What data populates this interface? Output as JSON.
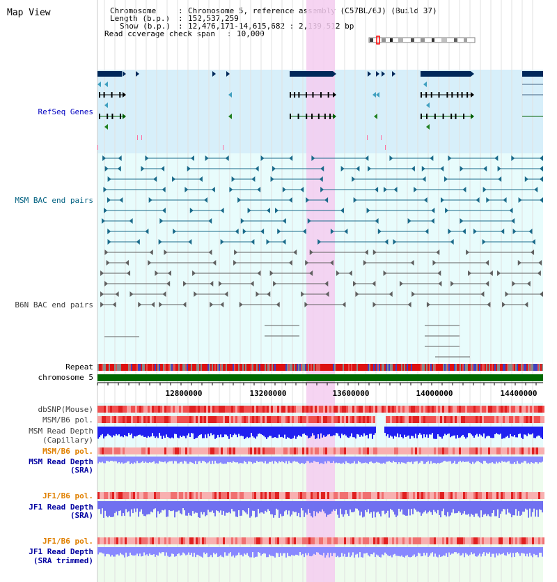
{
  "title": "Map View",
  "info": {
    "chromosome_key": "Chromosome",
    "chromosome_value": "Chromosome 5, reference assembly (C57BL/6J) (Build 37)",
    "length_key": "Length (b.p.)",
    "length_value": "152,537,259",
    "show_key": "Show (b.p.)",
    "show_value": "12,476,171-14,615,682 : 2,139,512 bp",
    "coverage_key": "Read coverage check span",
    "coverage_value": "10,000"
  },
  "tracks": {
    "refseq": "RefSeq Genes",
    "msm_bac": "MSM BAC end pairs",
    "b6n_bac": "B6N BAC end pairs",
    "repeat": "Repeat",
    "chromosome": "chromosome 5",
    "dbsnp": "dbSNP(Mouse)",
    "msm_pol": "MSM/B6 pol.",
    "msm_depth_cap_1": "MSM Read Depth",
    "msm_depth_cap_2": "(Capillary)",
    "msm_pol_sra": "MSM/B6 pol.",
    "msm_depth_sra_1": "MSM Read Depth",
    "msm_depth_sra_2": "(SRA)",
    "jf1_pol": "JF1/B6 pol.",
    "jf1_depth_1": "JF1 Read Depth",
    "jf1_depth_2": "(SRA)",
    "jf1_pol_trim": "JF1/B6 pol.",
    "jf1_depth_trim_1": "JF1 Read Depth",
    "jf1_depth_trim_2": "(SRA trimmed)"
  },
  "ruler": {
    "ticks": [
      "12800000",
      "13200000",
      "13600000",
      "14000000",
      "14400000"
    ]
  },
  "colors": {
    "refseq_bg": "#d7effa",
    "bac_bg": "#e8fcfc",
    "highlight": "#f5cdf0",
    "refseq_label": "#0000c0",
    "msm_label": "#006080",
    "b6n_label": "#404040",
    "pol_label_orange": "#e08000",
    "depth_label_blue": "#0000a0",
    "chromosome_bar": "#006a00",
    "depth_blue": "#2020f0",
    "depth_light": "#8888ff"
  }
}
